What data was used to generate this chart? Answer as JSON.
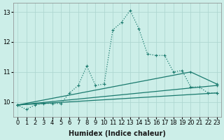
{
  "xlabel": "Humidex (Indice chaleur)",
  "ylabel": "",
  "bg_color": "#cceee8",
  "grid_color": "#aad4ce",
  "line_color": "#1a7a6e",
  "ylim": [
    9.5,
    13.3
  ],
  "xlim": [
    -0.5,
    23.5
  ],
  "yticks": [
    10,
    11,
    12,
    13
  ],
  "xticks": [
    0,
    1,
    2,
    3,
    4,
    5,
    6,
    7,
    8,
    9,
    10,
    11,
    12,
    13,
    14,
    15,
    16,
    17,
    18,
    19,
    20,
    21,
    22,
    23
  ],
  "curve1_x": [
    0,
    1,
    2,
    3,
    4,
    5,
    6,
    7,
    8,
    9,
    10,
    11,
    12,
    13,
    14,
    15,
    16,
    17,
    18,
    19,
    20,
    21,
    22,
    23
  ],
  "curve1_y": [
    9.9,
    9.75,
    9.9,
    9.95,
    9.95,
    9.95,
    10.3,
    10.55,
    11.2,
    10.55,
    10.6,
    12.4,
    12.65,
    13.05,
    12.45,
    11.6,
    11.55,
    11.55,
    11.0,
    11.05,
    10.5,
    10.5,
    10.3,
    10.3
  ],
  "line1_x": [
    0,
    23
  ],
  "line1_y": [
    9.9,
    10.3
  ],
  "line2_x": [
    0,
    23
  ],
  "line2_y": [
    9.9,
    10.55
  ],
  "line3_x": [
    0,
    20,
    23
  ],
  "line3_y": [
    9.9,
    11.0,
    10.6
  ],
  "marker": "+",
  "markersize": 3,
  "markersize_line": 3,
  "linewidth": 0.9,
  "linewidth_dot": 0.9
}
